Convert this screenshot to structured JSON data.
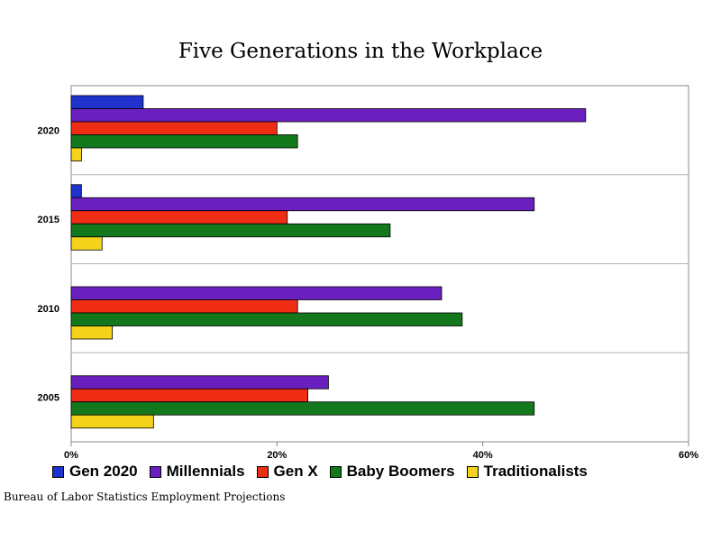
{
  "chart_data": {
    "type": "bar",
    "orientation": "horizontal",
    "title": "Five Generations in the Workplace",
    "categories": [
      "2020",
      "2015",
      "2010",
      "2005"
    ],
    "xlim": [
      0,
      60
    ],
    "xticks": [
      "0%",
      "20%",
      "40%",
      "60%"
    ],
    "xtick_values": [
      0,
      20,
      40,
      60
    ],
    "grid": "horizontal separators between categories",
    "legend_position": "bottom",
    "series": [
      {
        "name": "Gen 2020",
        "color": "#1f33cc",
        "values": [
          7,
          1,
          0,
          0
        ]
      },
      {
        "name": "Millennials",
        "color": "#6a1fbf",
        "values": [
          50,
          45,
          36,
          25
        ]
      },
      {
        "name": "Gen X",
        "color": "#ee2d14",
        "values": [
          20,
          21,
          22,
          23
        ]
      },
      {
        "name": "Baby Boomers",
        "color": "#13781c",
        "values": [
          22,
          31,
          38,
          45
        ]
      },
      {
        "name": "Traditionalists",
        "color": "#f3d41a",
        "values": [
          1,
          3,
          4,
          8
        ]
      }
    ]
  },
  "source_note": "Bureau of Labor Statistics Employment Projections"
}
